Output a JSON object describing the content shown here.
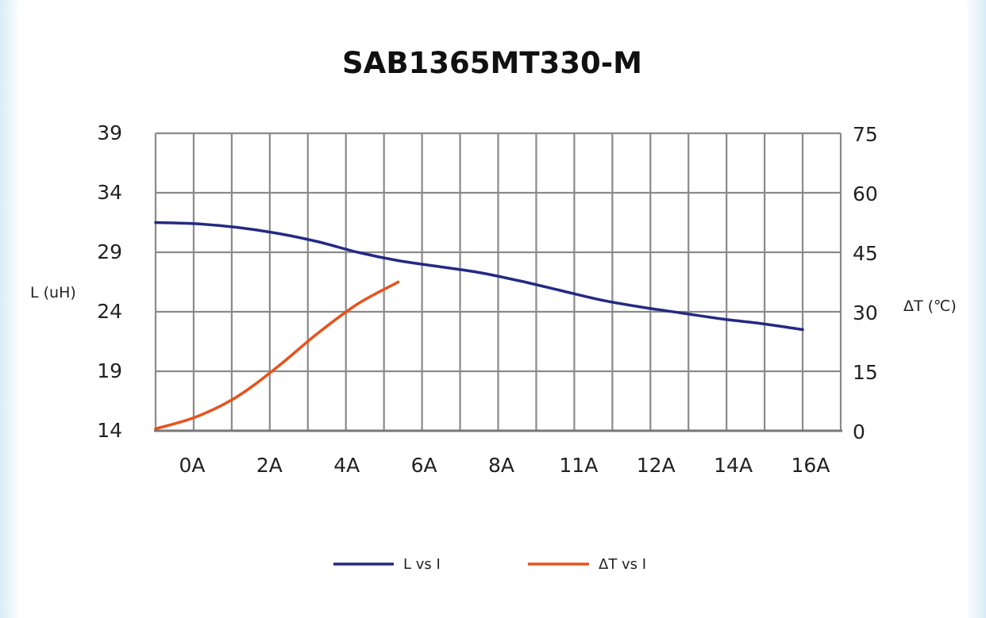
{
  "chart_data": {
    "type": "line",
    "title": "SAB1365MT330-M",
    "categories": [
      "0A",
      "2A",
      "4A",
      "6A",
      "8A",
      "11A",
      "12A",
      "14A",
      "16A"
    ],
    "y_left": {
      "label": "L (uH)",
      "range": [
        14,
        39
      ],
      "ticks": [
        "39",
        "34",
        "29",
        "24",
        "19",
        "14"
      ]
    },
    "y_right": {
      "label": "ΔT (℃)",
      "range": [
        0,
        75
      ],
      "ticks": [
        "75",
        "60",
        "45",
        "30",
        "15",
        "0"
      ]
    },
    "grid": true,
    "legend_position": "bottom",
    "series": [
      {
        "name": "L vs I",
        "axis": "left",
        "color": "#232a83",
        "points": [
          [
            0,
            31.5
          ],
          [
            1,
            31.4
          ],
          [
            2,
            31.1
          ],
          [
            3,
            30.6
          ],
          [
            4,
            29.9
          ],
          [
            5,
            29.0
          ],
          [
            6,
            28.3
          ],
          [
            7,
            27.8
          ],
          [
            8,
            27.3
          ],
          [
            9,
            26.6
          ],
          [
            10,
            25.8
          ],
          [
            11,
            25.0
          ],
          [
            12,
            24.4
          ],
          [
            13,
            23.9
          ],
          [
            14,
            23.4
          ],
          [
            15,
            23.0
          ],
          [
            16,
            22.5
          ]
        ]
      },
      {
        "name": "ΔT vs I",
        "axis": "right",
        "color": "#e8521c",
        "points": [
          [
            0,
            0.5
          ],
          [
            1,
            3.5
          ],
          [
            2,
            8.5
          ],
          [
            3,
            16.0
          ],
          [
            4,
            24.5
          ],
          [
            5,
            32.0
          ],
          [
            6,
            37.5
          ]
        ]
      }
    ]
  }
}
